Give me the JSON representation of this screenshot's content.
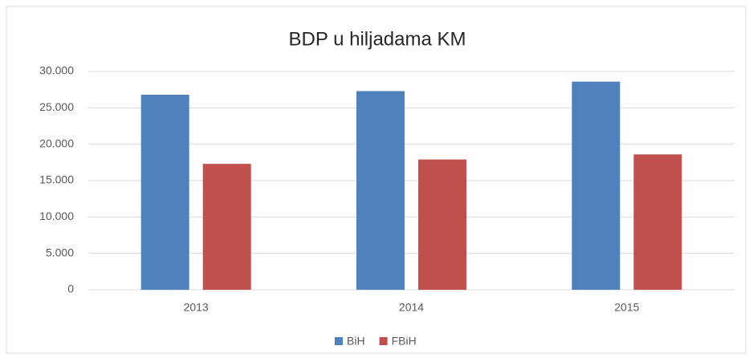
{
  "chart_data": {
    "type": "bar",
    "title": "BDP u hiljadama KM",
    "categories": [
      "2013",
      "2014",
      "2015"
    ],
    "series": [
      {
        "name": "BiH",
        "color": "#4f81bd",
        "values": [
          26800,
          27300,
          28600
        ]
      },
      {
        "name": "FBiH",
        "color": "#c0504d",
        "values": [
          17300,
          17900,
          18600
        ]
      }
    ],
    "ylim": [
      0,
      30000
    ],
    "yticks": [
      0,
      {
        "value": 5000,
        "label": "5.000"
      },
      {
        "value": 10000,
        "label": "10.000"
      },
      {
        "value": 15000,
        "label": "15.000"
      },
      {
        "value": 20000,
        "label": "20.000"
      },
      {
        "value": 25000,
        "label": "25.000"
      },
      {
        "value": 30000,
        "label": "30.000"
      }
    ],
    "grid": true,
    "legend": "bottom"
  }
}
